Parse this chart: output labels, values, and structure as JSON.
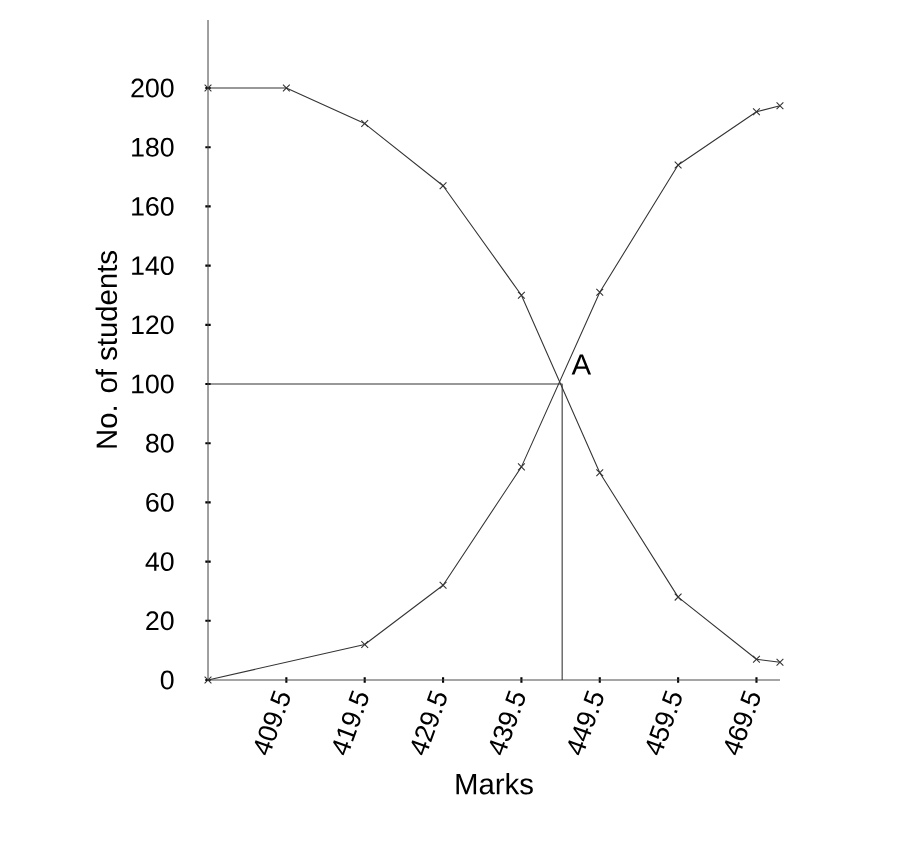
{
  "chart_data": {
    "type": "line",
    "xlabel": "Marks",
    "ylabel": "No. of students",
    "xlim": [
      399.5,
      472.5
    ],
    "ylim": [
      0,
      223
    ],
    "xticks": [
      409.5,
      419.5,
      429.5,
      439.5,
      449.5,
      459.5,
      469.5
    ],
    "yticks": [
      0,
      20,
      40,
      60,
      80,
      100,
      120,
      140,
      160,
      180,
      200
    ],
    "marker": "cross",
    "series": [
      {
        "color": "#333333",
        "x": [
          399.5,
          419.5,
          429.5,
          439.5,
          449.5,
          459.5,
          469.5,
          472.5
        ],
        "values": [
          0,
          12,
          32,
          72,
          131,
          174,
          192,
          194
        ]
      },
      {
        "color": "#333333",
        "x": [
          399.5,
          409.5,
          419.5,
          429.5,
          439.5,
          449.5,
          459.5,
          469.5,
          472.5
        ],
        "values": [
          200,
          200,
          188,
          167,
          130,
          70,
          28,
          7,
          6
        ]
      },
      {
        "color": "#333333",
        "marker": "none",
        "x": [
          399.5,
          444.7,
          444.7
        ],
        "values": [
          100,
          100,
          0
        ]
      }
    ],
    "annotations": [
      {
        "text": "A",
        "x": 444.7,
        "y": 100
      }
    ]
  }
}
